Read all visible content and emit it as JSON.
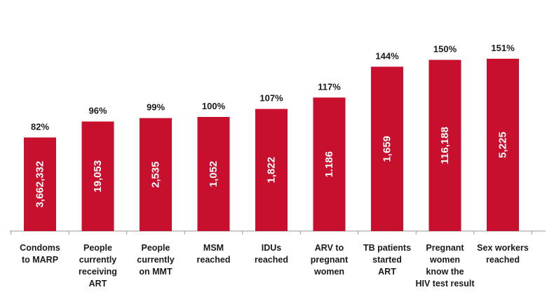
{
  "chart_data": {
    "type": "bar",
    "title": "",
    "xlabel": "",
    "ylabel": "",
    "ylim": [
      0,
      160
    ],
    "grid": false,
    "legend": "none",
    "bar_color": "#c8102e",
    "categories": [
      [
        "Condoms",
        "to MARP"
      ],
      [
        "People",
        "currently",
        "receiving",
        "ART"
      ],
      [
        "People",
        "currently",
        "on MMT"
      ],
      [
        "MSM",
        "reached"
      ],
      [
        "IDUs",
        "reached"
      ],
      [
        "ARV to",
        "pregnant",
        "women"
      ],
      [
        "TB patients",
        "started",
        "ART"
      ],
      [
        "Pregnant",
        "women",
        "know the",
        "HIV test result"
      ],
      [
        "Sex workers",
        "reached"
      ]
    ],
    "values": [
      82,
      96,
      99,
      100,
      107,
      117,
      144,
      150,
      151
    ],
    "value_labels": [
      "82%",
      "96%",
      "99%",
      "100%",
      "107%",
      "117%",
      "144%",
      "150%",
      "151%"
    ],
    "inner_labels": [
      "3,662,332",
      "19,053",
      "2,535",
      "1,052",
      "1,822",
      "1.186",
      "1,659",
      "116,188",
      "5,225"
    ]
  }
}
